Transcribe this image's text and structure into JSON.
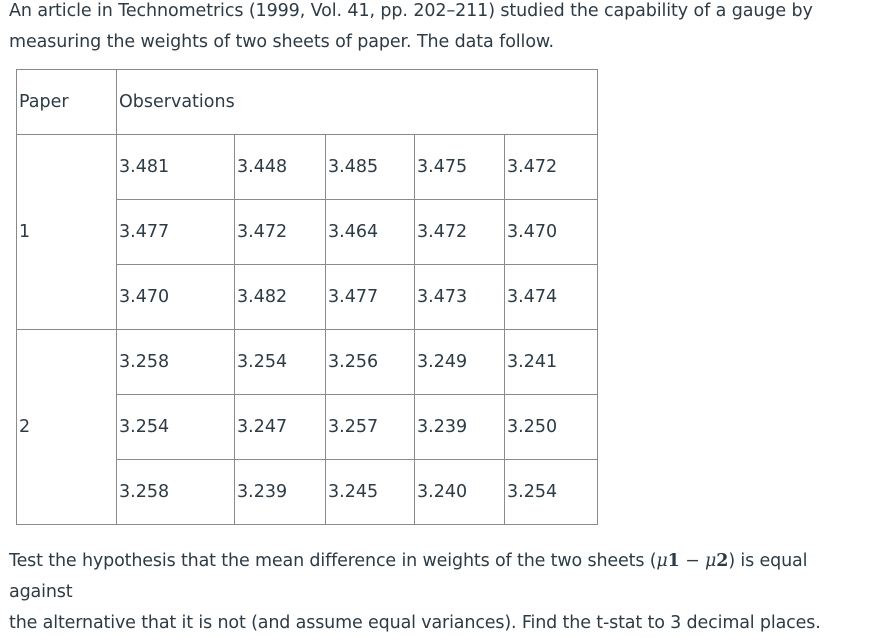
{
  "intro": {
    "line1": "An article in Technometrics (1999, Vol. 41, pp. 202–211) studied the capability of a gauge by",
    "line2": "measuring the weights of two sheets of paper. The data follow."
  },
  "table": {
    "header_paper": "Paper",
    "header_observations": "Observations",
    "groups": [
      {
        "paper": "1",
        "rows": [
          [
            "3.481",
            "3.448",
            "3.485",
            "3.475",
            "3.472"
          ],
          [
            "3.477",
            "3.472",
            "3.464",
            "3.472",
            "3.470"
          ],
          [
            "3.470",
            "3.482",
            "3.477",
            "3.473",
            "3.474"
          ]
        ]
      },
      {
        "paper": "2",
        "rows": [
          [
            "3.258",
            "3.254",
            "3.256",
            "3.249",
            "3.241"
          ],
          [
            "3.254",
            "3.247",
            "3.257",
            "3.239",
            "3.250"
          ],
          [
            "3.258",
            "3.239",
            "3.245",
            "3.240",
            "3.254"
          ]
        ]
      }
    ]
  },
  "question": {
    "part1": "Test the hypothesis that the mean difference in weights of the two sheets (",
    "mu_a": "μ",
    "sub_a": "1",
    "minus": "−",
    "mu_b": "μ",
    "sub_b": "2",
    "part2": ") is equal against",
    "part3": "the alternative that it is not (and assume equal variances). Find the t-stat to 3 decimal places."
  }
}
